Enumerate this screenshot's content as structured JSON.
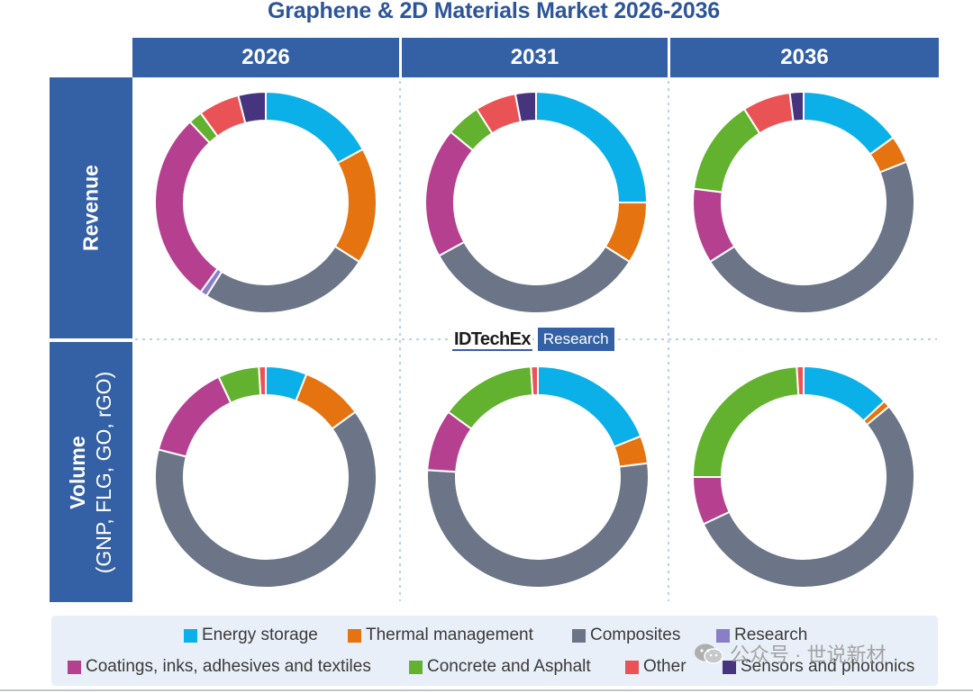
{
  "title": "Graphene & 2D Materials Market 2026-2036",
  "columns": [
    "2026",
    "2031",
    "2036"
  ],
  "rows": {
    "revenue": {
      "label": "Revenue"
    },
    "volume": {
      "label": "Volume",
      "sublabel": "(GNP, FLG, GO, rGO)"
    }
  },
  "logo": {
    "brand": "IDTechEx",
    "tag": "Research"
  },
  "watermark": "公众号 · 世说新材",
  "legend": {
    "items": [
      {
        "key": "energy",
        "label": "Energy storage",
        "color": "#0cb0e8"
      },
      {
        "key": "thermal",
        "label": "Thermal management",
        "color": "#e5730f"
      },
      {
        "key": "composites",
        "label": "Composites",
        "color": "#6b7587"
      },
      {
        "key": "research",
        "label": "Research",
        "color": "#8a7fc6"
      },
      {
        "key": "coatings",
        "label": "Coatings, inks, adhesives and textiles",
        "color": "#b5408f"
      },
      {
        "key": "concrete",
        "label": "Concrete and Asphalt",
        "color": "#62b12f"
      },
      {
        "key": "other",
        "label": "Other",
        "color": "#ea5356"
      },
      {
        "key": "sensors",
        "label": "Sensors and photonics",
        "color": "#46357e"
      }
    ]
  },
  "chart_data": [
    {
      "type": "pie",
      "donut": true,
      "title": "Revenue 2026",
      "unit": "percent share (estimated)",
      "categories": [
        "Energy storage",
        "Thermal management",
        "Composites",
        "Research",
        "Coatings, inks, adhesives and textiles",
        "Concrete and Asphalt",
        "Other",
        "Sensors and photonics"
      ],
      "values": [
        17,
        17,
        25,
        1,
        28,
        2,
        6,
        4
      ]
    },
    {
      "type": "pie",
      "donut": true,
      "title": "Revenue 2031",
      "unit": "percent share (estimated)",
      "categories": [
        "Energy storage",
        "Thermal management",
        "Composites",
        "Research",
        "Coatings, inks, adhesives and textiles",
        "Concrete and Asphalt",
        "Other",
        "Sensors and photonics"
      ],
      "values": [
        25,
        9,
        33,
        0,
        19,
        5,
        6,
        3
      ]
    },
    {
      "type": "pie",
      "donut": true,
      "title": "Revenue 2036",
      "unit": "percent share (estimated)",
      "categories": [
        "Energy storage",
        "Thermal management",
        "Composites",
        "Research",
        "Coatings, inks, adhesives and textiles",
        "Concrete and Asphalt",
        "Other",
        "Sensors and photonics"
      ],
      "values": [
        15,
        4,
        47,
        0,
        11,
        14,
        7,
        2
      ]
    },
    {
      "type": "pie",
      "donut": true,
      "title": "Volume 2026",
      "unit": "percent share (estimated)",
      "categories": [
        "Energy storage",
        "Thermal management",
        "Composites",
        "Research",
        "Coatings, inks, adhesives and textiles",
        "Concrete and Asphalt",
        "Other",
        "Sensors and photonics"
      ],
      "values": [
        6,
        9,
        64,
        0,
        14,
        6,
        1,
        0
      ]
    },
    {
      "type": "pie",
      "donut": true,
      "title": "Volume 2031",
      "unit": "percent share (estimated)",
      "categories": [
        "Energy storage",
        "Thermal management",
        "Composites",
        "Research",
        "Coatings, inks, adhesives and textiles",
        "Concrete and Asphalt",
        "Other",
        "Sensors and photonics"
      ],
      "values": [
        19,
        4,
        53,
        0,
        9,
        14,
        1,
        0
      ]
    },
    {
      "type": "pie",
      "donut": true,
      "title": "Volume 2036",
      "unit": "percent share (estimated)",
      "categories": [
        "Energy storage",
        "Thermal management",
        "Composites",
        "Research",
        "Coatings, inks, adhesives and textiles",
        "Concrete and Asphalt",
        "Other",
        "Sensors and photonics"
      ],
      "values": [
        13,
        1,
        54,
        0,
        7,
        24,
        1,
        0
      ]
    }
  ]
}
